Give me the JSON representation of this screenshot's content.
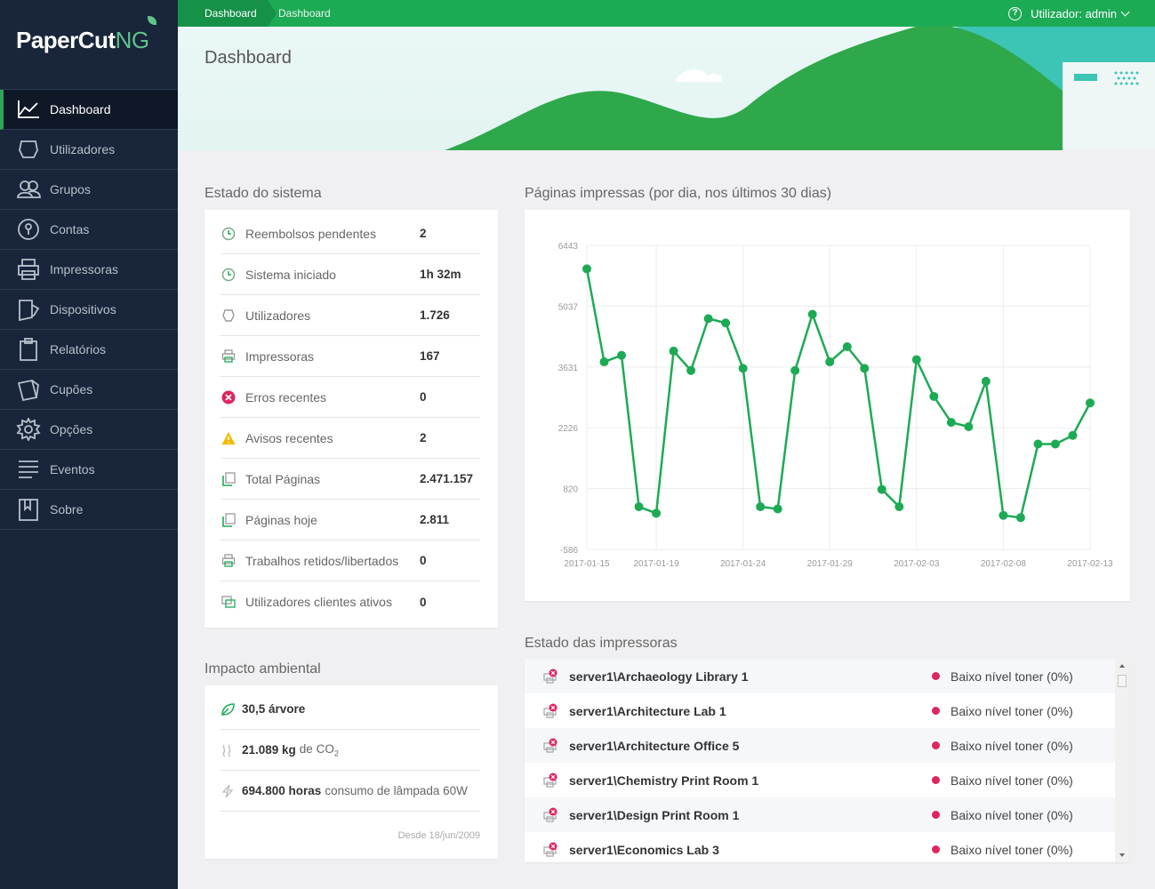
{
  "app": {
    "logo_main": "PaperCut",
    "logo_suffix": "NG"
  },
  "sidebar": {
    "items": [
      {
        "label": "Dashboard",
        "icon": "chart-line-icon",
        "active": true
      },
      {
        "label": "Utilizadores",
        "icon": "user-icon"
      },
      {
        "label": "Grupos",
        "icon": "group-icon"
      },
      {
        "label": "Contas",
        "icon": "lock-icon"
      },
      {
        "label": "Impressoras",
        "icon": "printer-icon"
      },
      {
        "label": "Dispositivos",
        "icon": "device-icon"
      },
      {
        "label": "Relatórios",
        "icon": "clipboard-icon"
      },
      {
        "label": "Cupões",
        "icon": "coupon-icon"
      },
      {
        "label": "Opções",
        "icon": "gear-icon"
      },
      {
        "label": "Eventos",
        "icon": "list-icon"
      },
      {
        "label": "Sobre",
        "icon": "bookmark-icon"
      }
    ]
  },
  "topbar": {
    "breadcrumb": [
      "Dashboard",
      "Dashboard"
    ],
    "user_label": "Utilizador: admin",
    "colors": {
      "bar": "#1daa55",
      "crumb": "#159148"
    }
  },
  "banner": {
    "title": "Dashboard"
  },
  "system_status": {
    "title": "Estado do sistema",
    "rows": [
      {
        "label": "Reembolsos pendentes",
        "value": "2",
        "icon": "clock-icon"
      },
      {
        "label": "Sistema iniciado",
        "value": "1h 32m",
        "icon": "clock-icon"
      },
      {
        "label": "Utilizadores",
        "value": "1.726",
        "icon": "user-icon"
      },
      {
        "label": "Impressoras",
        "value": "167",
        "icon": "printer-icon"
      },
      {
        "label": "Erros recentes",
        "value": "0",
        "icon": "error-icon"
      },
      {
        "label": "Avisos recentes",
        "value": "2",
        "icon": "warning-icon"
      },
      {
        "label": "Total Páginas",
        "value": "2.471.157",
        "icon": "pages-icon"
      },
      {
        "label": "Páginas hoje",
        "value": "2.811",
        "icon": "pages-icon"
      },
      {
        "label": "Trabalhos retidos/libertados",
        "value": "0",
        "icon": "printer-icon"
      },
      {
        "label": "Utilizadores clientes ativos",
        "value": "0",
        "icon": "monitor-icon"
      }
    ]
  },
  "environment": {
    "title": "Impacto ambiental",
    "trees_value": "30,5 árvore",
    "co2_value": "21.089 kg",
    "co2_unit": "de CO",
    "co2_sub": "2",
    "hours_value": "694.800 horas",
    "hours_label": "consumo de lâmpada 60W",
    "since": "Desde 18/jun/2009"
  },
  "chart_data": {
    "type": "line",
    "title": "Páginas impressas (por dia, nos últimos 30 dias)",
    "x": [
      "2017-01-15",
      "2017-01-16",
      "2017-01-17",
      "2017-01-18",
      "2017-01-19",
      "2017-01-20",
      "2017-01-21",
      "2017-01-22",
      "2017-01-23",
      "2017-01-24",
      "2017-01-25",
      "2017-01-26",
      "2017-01-27",
      "2017-01-28",
      "2017-01-29",
      "2017-01-30",
      "2017-01-31",
      "2017-02-01",
      "2017-02-02",
      "2017-02-03",
      "2017-02-04",
      "2017-02-05",
      "2017-02-06",
      "2017-02-07",
      "2017-02-08",
      "2017-02-09",
      "2017-02-10",
      "2017-02-11",
      "2017-02-12",
      "2017-02-13"
    ],
    "series": [
      {
        "values": [
          5900,
          3750,
          3900,
          400,
          250,
          4000,
          3550,
          4750,
          4650,
          3600,
          400,
          350,
          3550,
          4850,
          3750,
          4100,
          3600,
          800,
          400,
          3800,
          2950,
          2350,
          2250,
          3300,
          200,
          150,
          1850,
          1850,
          2050,
          2800
        ]
      }
    ],
    "xticks": [
      "2017-01-15",
      "2017-01-19",
      "2017-01-24",
      "2017-01-29",
      "2017-02-03",
      "2017-02-08",
      "2017-02-13"
    ],
    "yticks": [
      6443,
      5037,
      3631,
      2226,
      820,
      -586
    ],
    "ylim": [
      -586,
      6443
    ],
    "grid": true,
    "color": "#1daa55"
  },
  "printers": {
    "title": "Estado das impressoras",
    "rows": [
      {
        "name": "server1\\Archaeology Library 1",
        "status": "Baixo nível toner (0%)"
      },
      {
        "name": "server1\\Architecture Lab 1",
        "status": "Baixo nível toner (0%)"
      },
      {
        "name": "server1\\Architecture Office 5",
        "status": "Baixo nível toner (0%)"
      },
      {
        "name": "server1\\Chemistry Print Room 1",
        "status": "Baixo nível toner (0%)"
      },
      {
        "name": "server1\\Design Print Room 1",
        "status": "Baixo nível toner (0%)"
      },
      {
        "name": "server1\\Economics Lab 3",
        "status": "Baixo nível toner (0%)"
      }
    ]
  }
}
